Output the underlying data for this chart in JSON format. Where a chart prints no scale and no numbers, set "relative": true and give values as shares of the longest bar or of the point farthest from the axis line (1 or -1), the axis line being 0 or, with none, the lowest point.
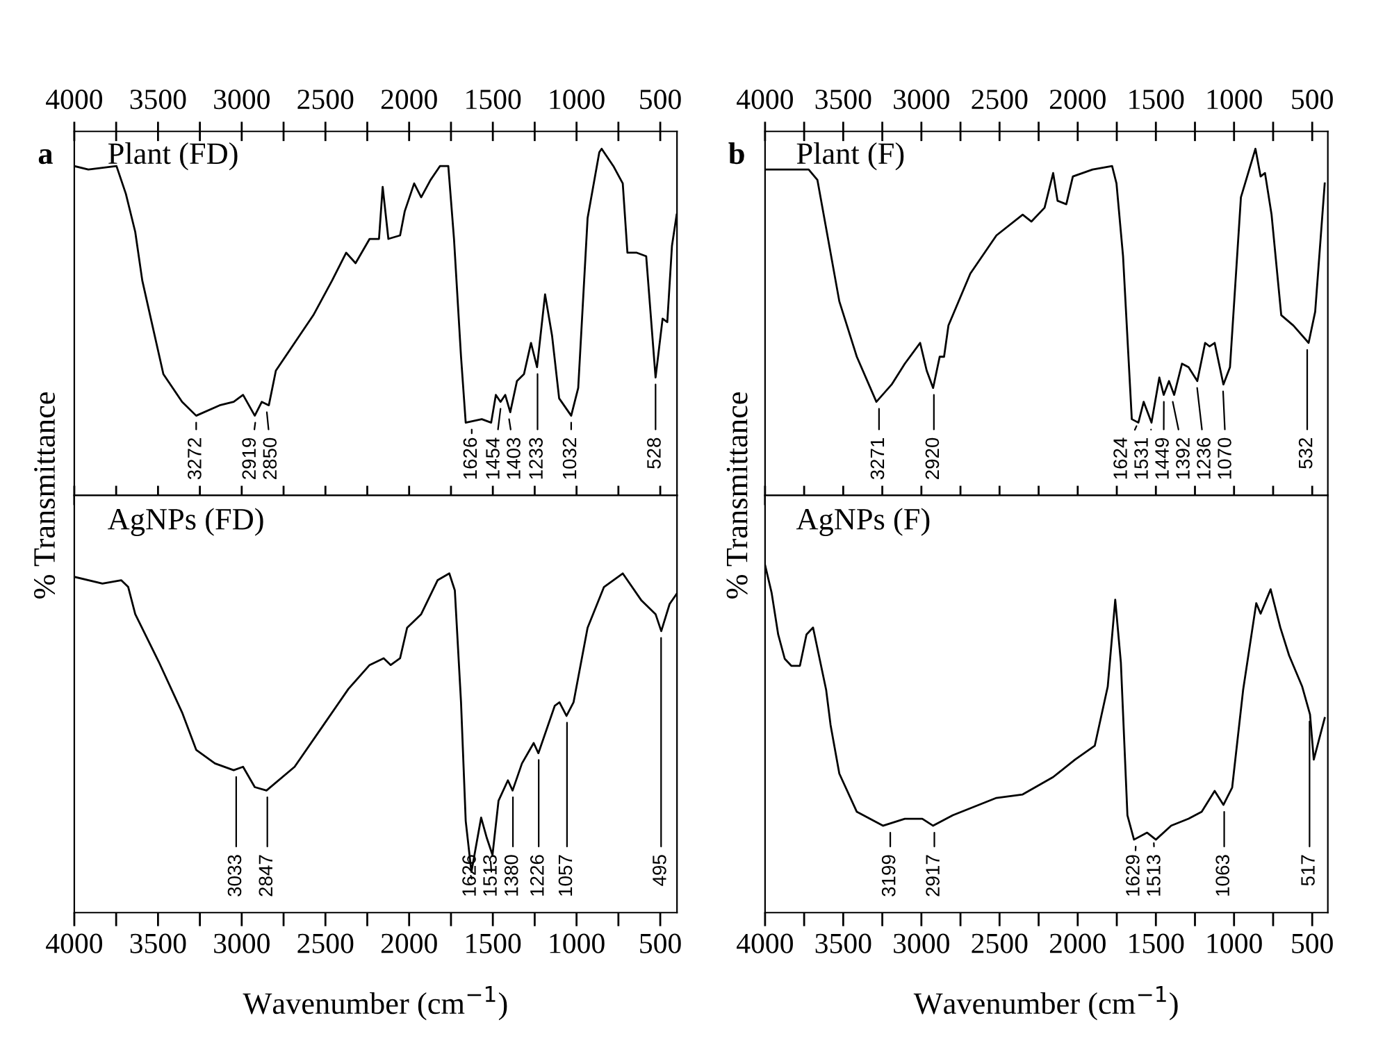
{
  "chart_data": [
    {
      "type": "line",
      "title": "Plant (FD)",
      "ylabel": "% Transmittance",
      "relative": true,
      "annotations": [
        "a",
        {
          "text": "3272",
          "x": 3272,
          "y": 0.23
        },
        {
          "text": "2919",
          "x": 2919,
          "y": 0.23
        },
        {
          "text": "2850",
          "x": 2850,
          "y": 0.26
        },
        {
          "text": "1626",
          "x": 1626,
          "y": 0.21
        },
        {
          "text": "1454",
          "x": 1454,
          "y": 0.27
        },
        {
          "text": "1403",
          "x": 1403,
          "y": 0.24
        },
        {
          "text": "1233",
          "x": 1233,
          "y": 0.37
        },
        {
          "text": "1032",
          "x": 1032,
          "y": 0.23
        },
        {
          "text": "528",
          "x": 528,
          "y": 0.34
        }
      ],
      "xlim": [
        4000,
        400
      ],
      "xticks": [
        4000,
        {
          "value": 3750,
          "label": null
        },
        3500,
        {
          "value": 3250,
          "label": null
        },
        3000,
        {
          "value": 2750,
          "label": null
        },
        2500,
        {
          "value": 2250,
          "label": null
        },
        2000,
        {
          "value": 1750,
          "label": null
        },
        1500,
        {
          "value": 1250,
          "label": null
        },
        1000,
        {
          "value": 750,
          "label": null
        },
        500
      ],
      "series": [
        {
          "color": "#000000",
          "x": [
            4000,
            3916,
            3748,
            3734,
            3692,
            3636,
            3594,
            3538,
            3468,
            3356,
            3272,
            3132,
            3048,
            2992,
            2922,
            2880,
            2838,
            2796,
            2684,
            2572,
            2460,
            2376,
            2320,
            2236,
            2180,
            2158,
            2124,
            2054,
            2026,
            1970,
            1928,
            1872,
            1816,
            1766,
            1732,
            1690,
            1662,
            1566,
            1510,
            1482,
            1454,
            1426,
            1396,
            1356,
            1314,
            1272,
            1236,
            1188,
            1146,
            1104,
            1032,
            990,
            934,
            864,
            850,
            780,
            724,
            696,
            640,
            584,
            528,
            486,
            458,
            430,
            402
          ],
          "values": [
            0.95,
            0.94,
            0.95,
            0.93,
            0.87,
            0.76,
            0.62,
            0.5,
            0.35,
            0.27,
            0.23,
            0.26,
            0.27,
            0.29,
            0.23,
            0.27,
            0.26,
            0.36,
            0.44,
            0.52,
            0.62,
            0.7,
            0.67,
            0.74,
            0.74,
            0.89,
            0.74,
            0.75,
            0.82,
            0.9,
            0.86,
            0.91,
            0.95,
            0.95,
            0.74,
            0.4,
            0.21,
            0.22,
            0.21,
            0.29,
            0.27,
            0.29,
            0.24,
            0.33,
            0.35,
            0.44,
            0.37,
            0.58,
            0.46,
            0.28,
            0.23,
            0.31,
            0.8,
            0.99,
            1.0,
            0.95,
            0.9,
            0.7,
            0.7,
            0.69,
            0.34,
            0.51,
            0.5,
            0.72,
            0.81
          ]
        }
      ]
    },
    {
      "type": "line",
      "title": "AgNPs (FD)",
      "xlabel": "Wavenumber (cm$^{−1}$)",
      "relative": true,
      "annotations": [
        {
          "text": "3033",
          "x": 3033,
          "y": 0.42
        },
        {
          "text": "2847",
          "x": 2847,
          "y": 0.36
        },
        {
          "text": "1626",
          "x": 1626,
          "y": 0.12
        },
        {
          "text": "1513",
          "x": 1513,
          "y": 0.17
        },
        {
          "text": "1380",
          "x": 1380,
          "y": 0.36
        },
        {
          "text": "1226",
          "x": 1226,
          "y": 0.47
        },
        {
          "text": "1057",
          "x": 1057,
          "y": 0.58
        },
        {
          "text": "495",
          "x": 495,
          "y": 0.83
        }
      ],
      "xlim": [
        4000,
        400
      ],
      "xticks": [
        4000,
        {
          "value": 3750,
          "label": null
        },
        3500,
        {
          "value": 3250,
          "label": null
        },
        3000,
        {
          "value": 2750,
          "label": null
        },
        2500,
        {
          "value": 2250,
          "label": null
        },
        2000,
        {
          "value": 1750,
          "label": null
        },
        1500,
        {
          "value": 1250,
          "label": null
        },
        1000,
        {
          "value": 750,
          "label": null
        },
        500
      ],
      "series": [
        {
          "color": "#000000",
          "x": [
            4000,
            3832,
            3720,
            3678,
            3636,
            3496,
            3356,
            3272,
            3160,
            3048,
            2992,
            2922,
            2852,
            2684,
            2516,
            2362,
            2236,
            2152,
            2110,
            2054,
            2012,
            1928,
            1830,
            1760,
            1727,
            1690,
            1662,
            1628,
            1570,
            1536,
            1502,
            1466,
            1410,
            1382,
            1326,
            1256,
            1228,
            1130,
            1102,
            1060,
            1018,
            934,
            836,
            724,
            612,
            528,
            494,
            444,
            402
          ],
          "values": [
            0.99,
            0.97,
            0.98,
            0.96,
            0.88,
            0.74,
            0.59,
            0.48,
            0.44,
            0.42,
            0.43,
            0.37,
            0.36,
            0.43,
            0.55,
            0.66,
            0.73,
            0.75,
            0.73,
            0.75,
            0.84,
            0.88,
            0.98,
            1.0,
            0.95,
            0.62,
            0.27,
            0.12,
            0.28,
            0.22,
            0.17,
            0.33,
            0.39,
            0.36,
            0.44,
            0.5,
            0.47,
            0.61,
            0.62,
            0.58,
            0.62,
            0.84,
            0.96,
            1.0,
            0.92,
            0.88,
            0.83,
            0.91,
            0.94
          ]
        }
      ]
    },
    {
      "type": "line",
      "title": "Plant (F)",
      "ylabel": "% Transmittance",
      "relative": true,
      "annotations": [
        "b",
        {
          "text": "3271",
          "x": 3271,
          "y": 0.27
        },
        {
          "text": "2920",
          "x": 2920,
          "y": 0.31
        },
        {
          "text": "1624",
          "x": 1624,
          "y": 0.22
        },
        {
          "text": "1531",
          "x": 1531,
          "y": 0.21
        },
        {
          "text": "1449",
          "x": 1449,
          "y": 0.29
        },
        {
          "text": "1392",
          "x": 1392,
          "y": 0.29
        },
        {
          "text": "1236",
          "x": 1236,
          "y": 0.33
        },
        {
          "text": "1070",
          "x": 1070,
          "y": 0.32
        },
        {
          "text": "532",
          "x": 532,
          "y": 0.44
        }
      ],
      "xlim": [
        4000,
        400
      ],
      "xticks": [
        4000,
        {
          "value": 3750,
          "label": null
        },
        3500,
        {
          "value": 3250,
          "label": null
        },
        3000,
        {
          "value": 2750,
          "label": null
        },
        2500,
        {
          "value": 2250,
          "label": null
        },
        2000,
        {
          "value": 1750,
          "label": null
        },
        1500,
        {
          "value": 1250,
          "label": null
        },
        1000,
        {
          "value": 750,
          "label": null
        },
        500
      ],
      "series": [
        {
          "color": "#000000",
          "x": [
            4000,
            3860,
            3721,
            3665,
            3609,
            3525,
            3413,
            3288,
            3190,
            3106,
            3008,
            2966,
            2925,
            2883,
            2855,
            2827,
            2687,
            2520,
            2352,
            2296,
            2212,
            2157,
            2129,
            2073,
            2031,
            1905,
            1780,
            1752,
            1710,
            1654,
            1612,
            1578,
            1528,
            1478,
            1450,
            1416,
            1383,
            1333,
            1291,
            1235,
            1185,
            1157,
            1124,
            1068,
            1026,
            956,
            863,
            830,
            802,
            760,
            698,
            620,
            523,
            481,
            420
          ],
          "values": [
            0.94,
            0.94,
            0.94,
            0.91,
            0.77,
            0.56,
            0.4,
            0.27,
            0.32,
            0.38,
            0.44,
            0.36,
            0.31,
            0.4,
            0.4,
            0.49,
            0.64,
            0.75,
            0.81,
            0.79,
            0.83,
            0.93,
            0.85,
            0.84,
            0.92,
            0.94,
            0.95,
            0.9,
            0.69,
            0.22,
            0.21,
            0.27,
            0.21,
            0.34,
            0.29,
            0.33,
            0.29,
            0.38,
            0.37,
            0.33,
            0.44,
            0.43,
            0.44,
            0.32,
            0.37,
            0.86,
            1.0,
            0.92,
            0.93,
            0.81,
            0.52,
            0.49,
            0.44,
            0.53,
            0.9
          ]
        }
      ]
    },
    {
      "type": "line",
      "title": "AgNPs (F)",
      "xlabel": "Wavenumber (cm$^{−1}$)",
      "relative": true,
      "annotations": [
        {
          "text": "3199",
          "x": 3199,
          "y": 0.25
        },
        {
          "text": "2917",
          "x": 2917,
          "y": 0.25
        },
        {
          "text": "1629",
          "x": 1629,
          "y": 0.21
        },
        {
          "text": "1513",
          "x": 1513,
          "y": 0.22
        },
        {
          "text": "1063",
          "x": 1063,
          "y": 0.31
        },
        {
          "text": "517",
          "x": 517,
          "y": 0.57
        }
      ],
      "xlim": [
        4000,
        400
      ],
      "xticks": [
        4000,
        {
          "value": 3750,
          "label": null
        },
        3500,
        {
          "value": 3250,
          "label": null
        },
        3000,
        {
          "value": 2750,
          "label": null
        },
        2500,
        {
          "value": 2250,
          "label": null
        },
        2000,
        {
          "value": 1750,
          "label": null
        },
        1500,
        {
          "value": 1250,
          "label": null
        },
        1000,
        {
          "value": 750,
          "label": null
        },
        500
      ],
      "series": [
        {
          "color": "#000000",
          "x": [
            4000,
            3958,
            3916,
            3874,
            3832,
            3777,
            3735,
            3693,
            3665,
            3609,
            3581,
            3525,
            3413,
            3246,
            3106,
            2994,
            2925,
            2799,
            2520,
            2352,
            2157,
            2017,
            1891,
            1808,
            1760,
            1724,
            1682,
            1640,
            1556,
            1500,
            1402,
            1291,
            1207,
            1124,
            1068,
            1012,
            942,
            858,
            830,
            766,
            704,
            648,
            564,
            514,
            490,
            420
          ],
          "values": [
            1.0,
            0.92,
            0.8,
            0.73,
            0.71,
            0.71,
            0.8,
            0.82,
            0.76,
            0.64,
            0.54,
            0.4,
            0.29,
            0.25,
            0.27,
            0.27,
            0.25,
            0.28,
            0.33,
            0.34,
            0.39,
            0.44,
            0.48,
            0.65,
            0.9,
            0.72,
            0.28,
            0.21,
            0.23,
            0.21,
            0.25,
            0.27,
            0.29,
            0.35,
            0.31,
            0.36,
            0.64,
            0.89,
            0.86,
            0.93,
            0.82,
            0.74,
            0.65,
            0.57,
            0.44,
            0.56
          ]
        }
      ]
    }
  ]
}
